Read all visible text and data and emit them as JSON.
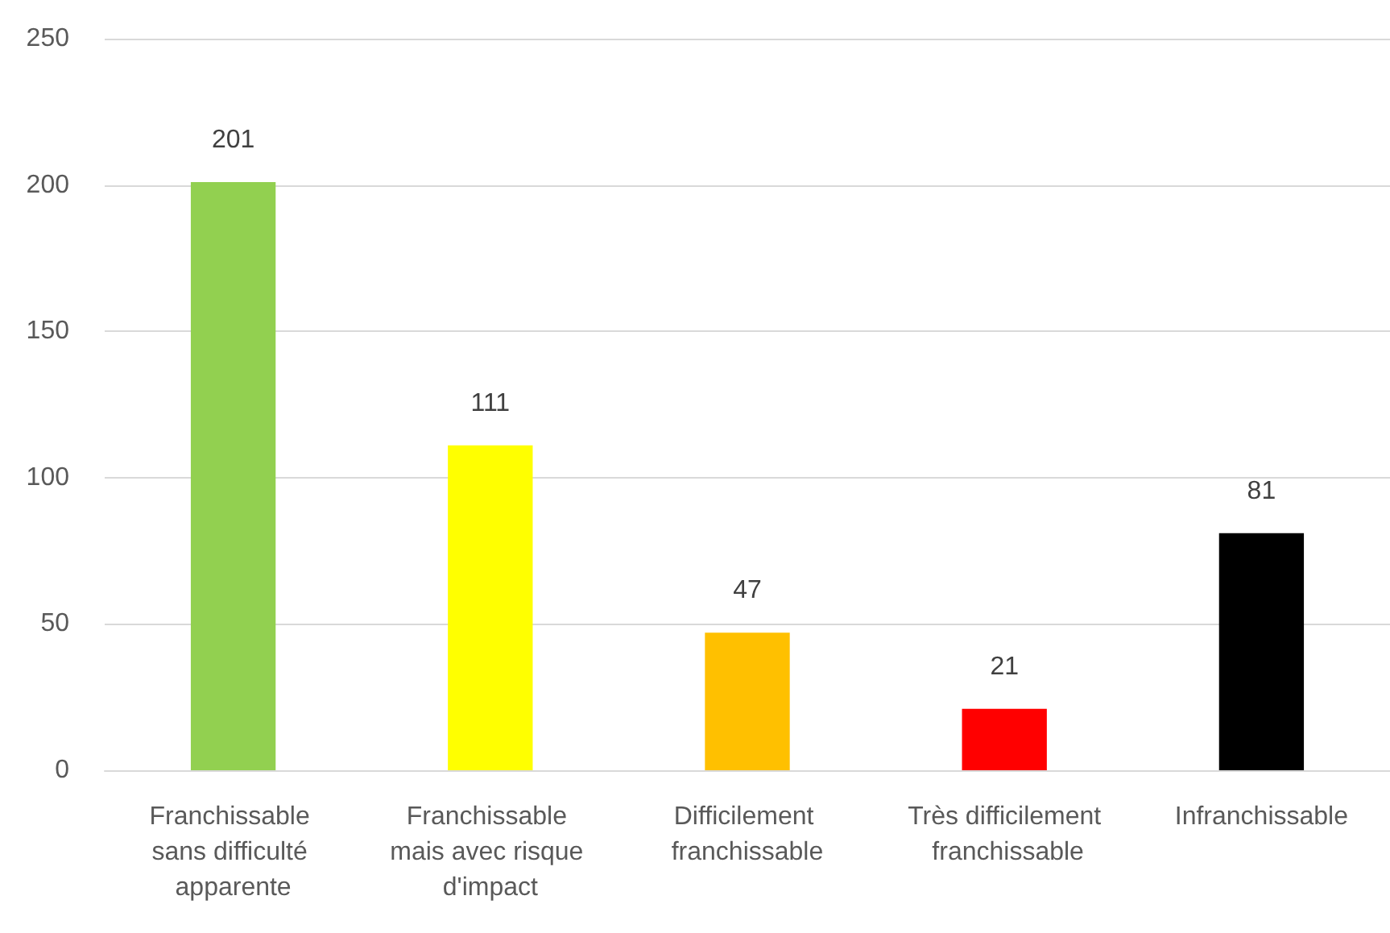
{
  "chart_data": {
    "type": "bar",
    "categories": [
      "Franchissable sans difficulté apparente",
      "Franchissable mais avec risque d'impact",
      "Difficilement franchissable",
      "Très difficilement franchissable",
      "Infranchissable"
    ],
    "values": [
      201,
      111,
      47,
      21,
      81
    ],
    "colors": [
      "#92d050",
      "#ffff00",
      "#ffc000",
      "#ff0000",
      "#000000"
    ],
    "ylim": [
      0,
      250
    ],
    "yticks": [
      0,
      50,
      100,
      150,
      200,
      250
    ],
    "grid": "y",
    "data_labels": true
  }
}
